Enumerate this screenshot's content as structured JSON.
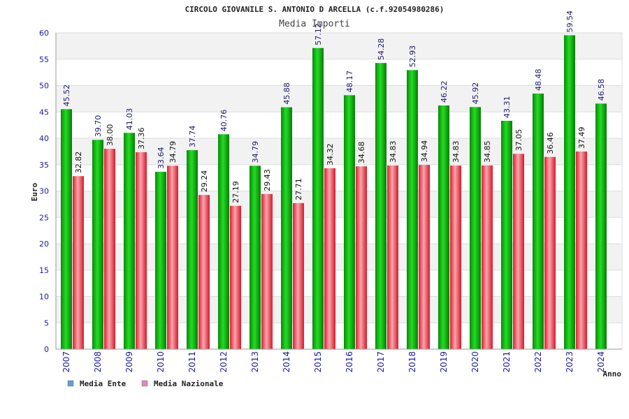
{
  "chart_data": {
    "type": "bar",
    "title": "CIRCOLO GIOVANILE S. ANTONIO D ARCELLA (c.f.92054980286)",
    "subtitle": "Media Importi",
    "ylabel": "Euro",
    "xlabel": "Anno",
    "ylim": [
      0,
      60
    ],
    "ytick_step": 5,
    "grid": true,
    "legend_position": "bottom-left",
    "categories": [
      "2007",
      "2008",
      "2009",
      "2010",
      "2011",
      "2012",
      "2013",
      "2014",
      "2015",
      "2016",
      "2017",
      "2018",
      "2019",
      "2020",
      "2021",
      "2022",
      "2023",
      "2024"
    ],
    "series": [
      {
        "name": "Media Ente",
        "color": "#22bb22",
        "legend_color": "#6699dd",
        "values": [
          45.52,
          39.7,
          41.03,
          33.64,
          37.74,
          40.76,
          34.79,
          45.88,
          57.12,
          48.17,
          54.28,
          52.93,
          46.22,
          45.92,
          43.31,
          48.48,
          59.54,
          46.58
        ],
        "labels": [
          "45.52",
          "39.70",
          "41.03",
          "33.64",
          "37.74",
          "40.76",
          "34.79",
          "45.88",
          "57.12",
          "48.17",
          "54.28",
          "52.93",
          "46.22",
          "45.92",
          "43.31",
          "48.48",
          "59.54",
          "46.58"
        ]
      },
      {
        "name": "Media Nazionale",
        "color": "#ee4455",
        "legend_color": "#dd88bb",
        "values": [
          32.82,
          38.0,
          37.36,
          34.79,
          29.24,
          27.19,
          29.43,
          27.71,
          34.32,
          34.68,
          34.83,
          34.94,
          34.83,
          34.85,
          37.05,
          36.46,
          37.49,
          null
        ],
        "labels": [
          "32.82",
          "38.00",
          "37.36",
          "34.79",
          "29.24",
          "27.19",
          "29.43",
          "27.71",
          "34.32",
          "34.68",
          "34.83",
          "34.94",
          "34.83",
          "34.85",
          "37.05",
          "36.46",
          "37.49",
          null
        ]
      }
    ]
  }
}
